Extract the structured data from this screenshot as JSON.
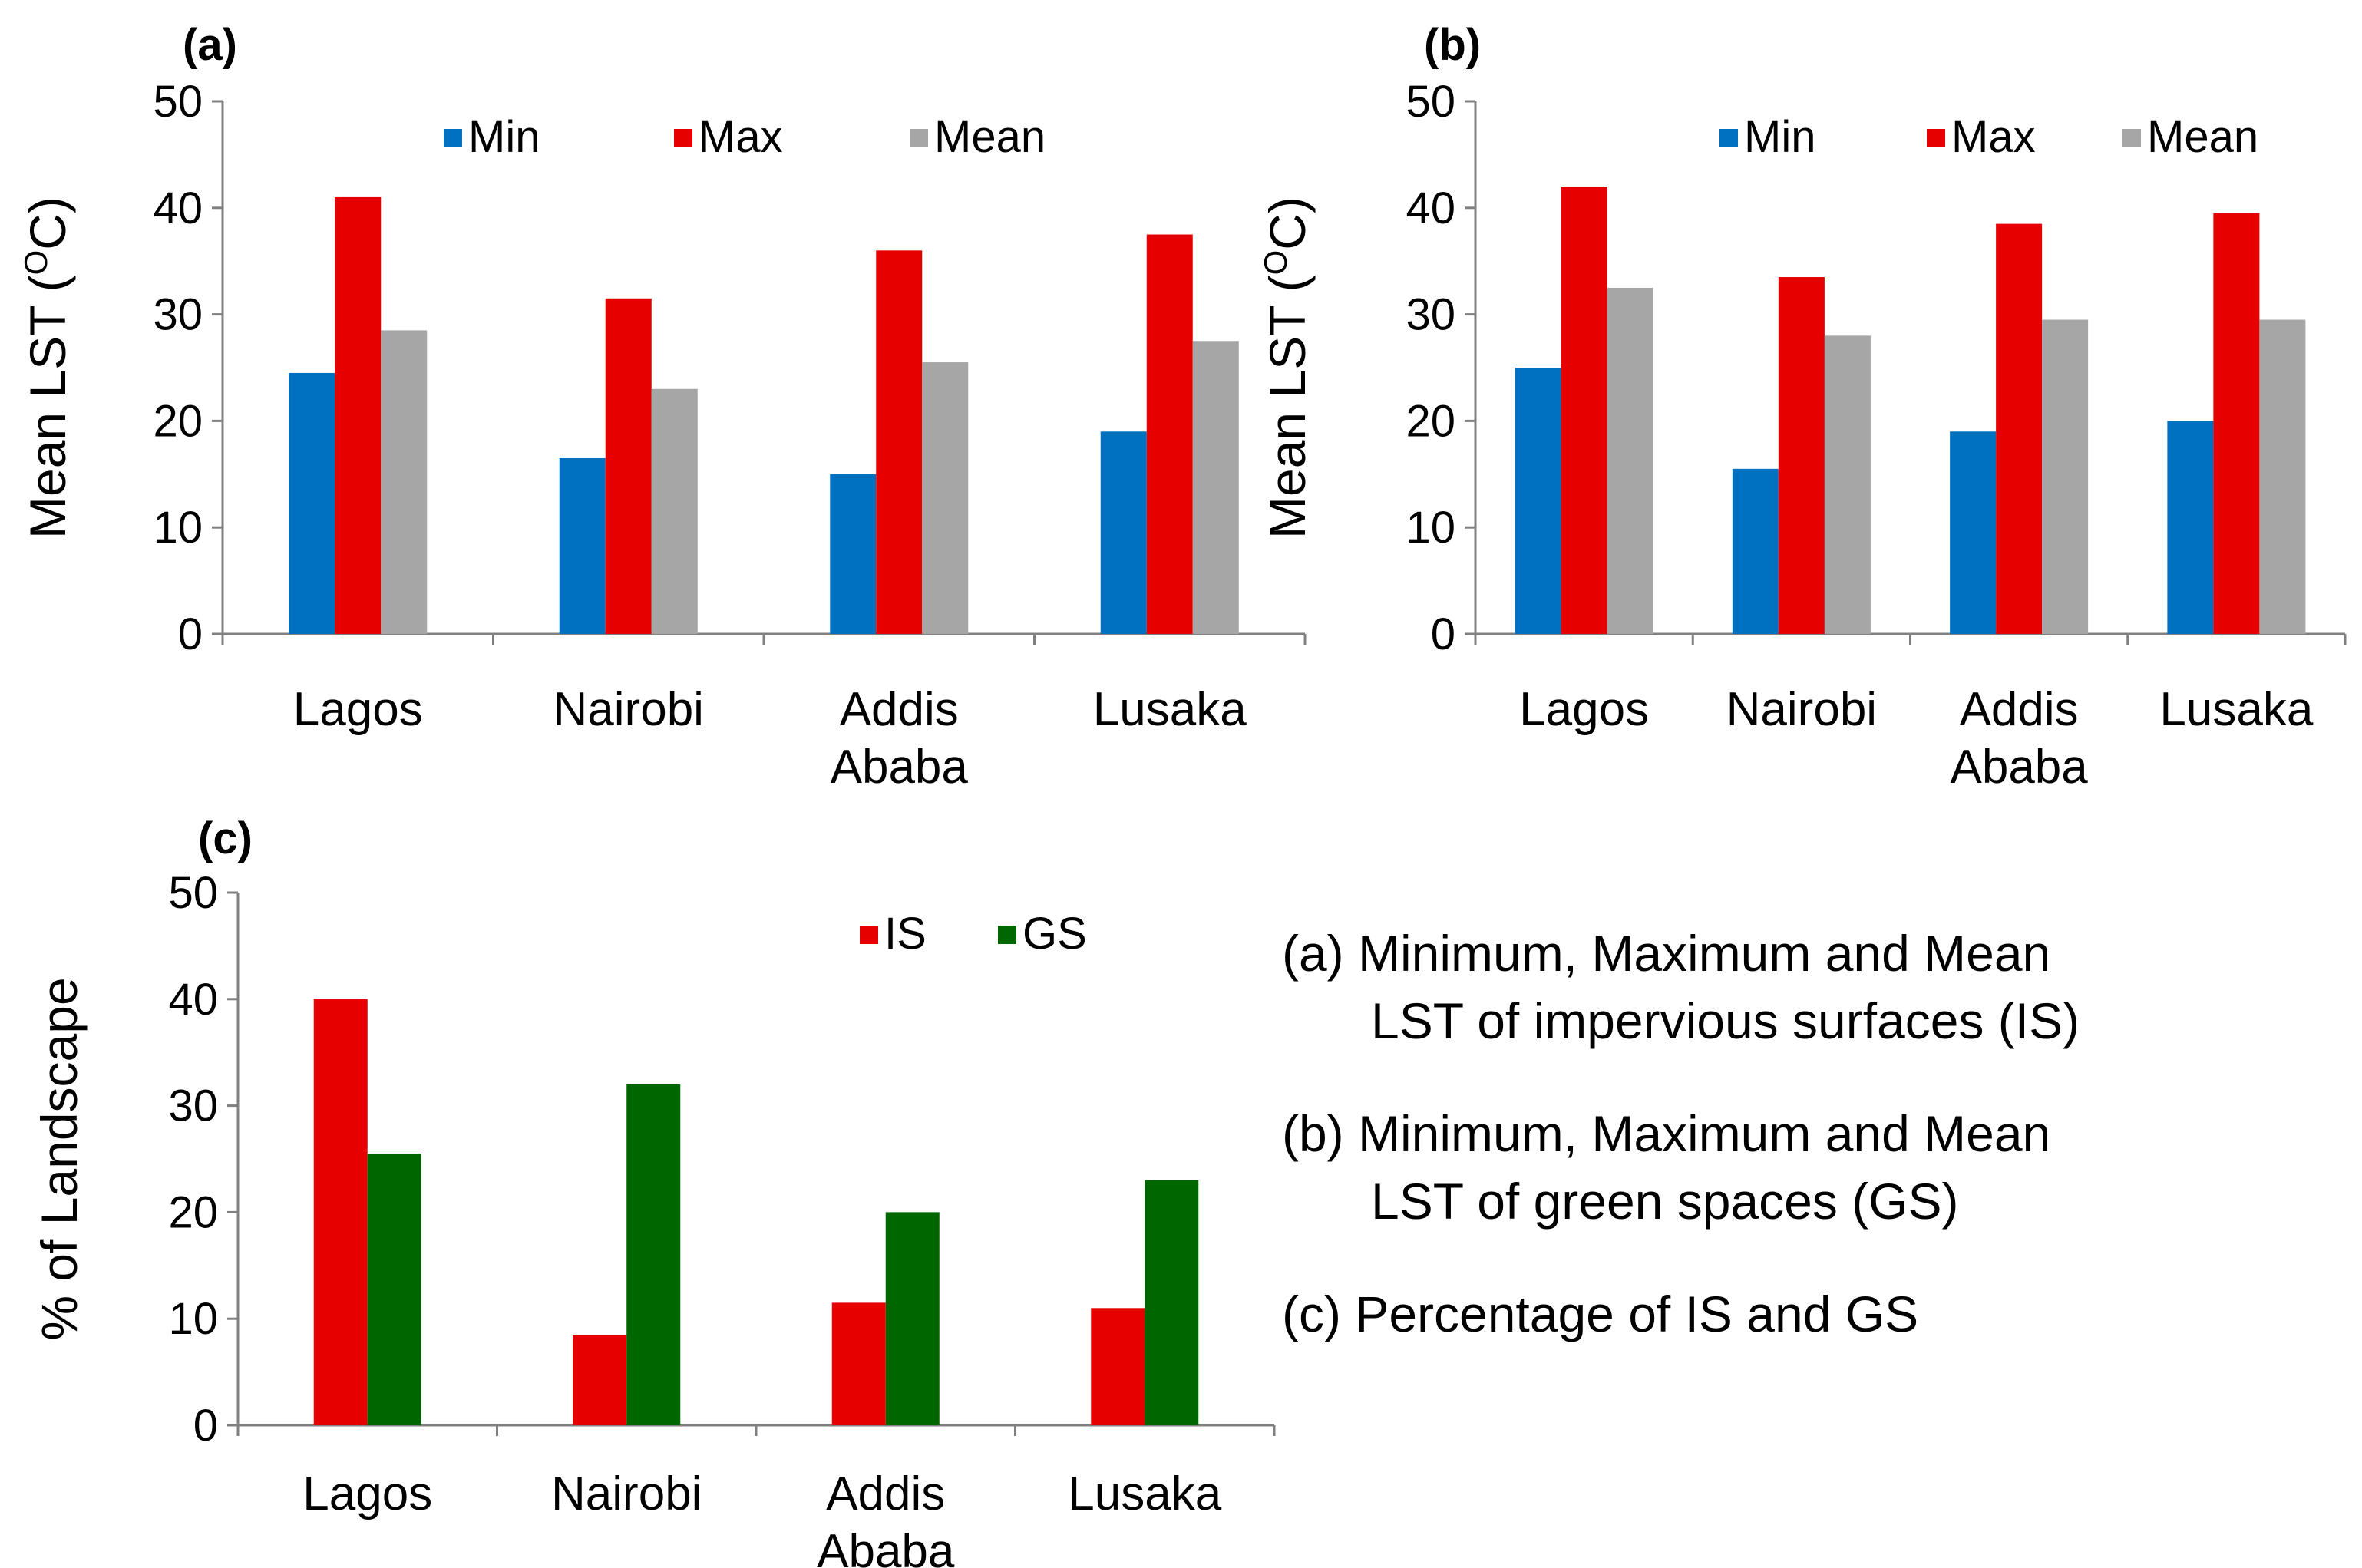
{
  "colors": {
    "min": "#0070C0",
    "max": "#E60000",
    "mean": "#A6A6A6",
    "is": "#E60000",
    "gs": "#006600",
    "axis": "#808080",
    "text": "#000000"
  },
  "chart_data": [
    {
      "panel_label": "(a)",
      "type": "bar",
      "title": "",
      "ylabel": "Mean LST (",
      "ylabel_sup": "O",
      "ylabel_end": "C)",
      "xlabel": "",
      "ylim": [
        0,
        50
      ],
      "yticks": [
        "0",
        "10",
        "20",
        "30",
        "40",
        "50"
      ],
      "categories": [
        [
          "Lagos"
        ],
        [
          "Nairobi"
        ],
        [
          "Addis",
          "Ababa"
        ],
        [
          "Lusaka"
        ]
      ],
      "legend_position": "top-right",
      "series": [
        {
          "name": "Min",
          "color_key": "min",
          "values": [
            24.5,
            16.5,
            15,
            19
          ]
        },
        {
          "name": "Max",
          "color_key": "max",
          "values": [
            41,
            31.5,
            36,
            37.5
          ]
        },
        {
          "name": "Mean",
          "color_key": "mean",
          "values": [
            28.5,
            23,
            25.5,
            27.5
          ]
        }
      ]
    },
    {
      "panel_label": "(b)",
      "type": "bar",
      "title": "",
      "ylabel": "Mean LST (",
      "ylabel_sup": "O",
      "ylabel_end": "C)",
      "xlabel": "",
      "ylim": [
        0,
        50
      ],
      "yticks": [
        "0",
        "10",
        "20",
        "30",
        "40",
        "50"
      ],
      "categories": [
        [
          "Lagos"
        ],
        [
          "Nairobi"
        ],
        [
          "Addis",
          "Ababa"
        ],
        [
          "Lusaka"
        ]
      ],
      "legend_position": "top-right",
      "series": [
        {
          "name": "Min",
          "color_key": "min",
          "values": [
            25,
            15.5,
            19,
            20
          ]
        },
        {
          "name": "Max",
          "color_key": "max",
          "values": [
            42,
            33.5,
            38.5,
            39.5
          ]
        },
        {
          "name": "Mean",
          "color_key": "mean",
          "values": [
            32.5,
            28,
            29.5,
            29.5
          ]
        }
      ]
    },
    {
      "panel_label": "(c)",
      "type": "bar",
      "title": "",
      "ylabel": "% of Landscape",
      "ylabel_sup": "",
      "ylabel_end": "",
      "xlabel": "",
      "ylim": [
        0,
        50
      ],
      "yticks": [
        "0",
        "10",
        "20",
        "30",
        "40",
        "50"
      ],
      "categories": [
        [
          "Lagos"
        ],
        [
          "Nairobi"
        ],
        [
          "Addis",
          "Ababa"
        ],
        [
          "Lusaka"
        ]
      ],
      "legend_position": "top-right",
      "series": [
        {
          "name": "IS",
          "color_key": "is",
          "values": [
            40,
            8.5,
            11.5,
            11
          ]
        },
        {
          "name": "GS",
          "color_key": "gs",
          "values": [
            25.5,
            32,
            20,
            23
          ]
        }
      ]
    }
  ],
  "caption": {
    "a_line1": "(a) Minimum, Maximum and Mean",
    "a_line2": "LST of impervious surfaces (IS)",
    "b_line1": "(b) Minimum, Maximum and Mean",
    "b_line2": "LST of  green spaces (GS)",
    "c_line1": "(c)  Percentage of IS and GS"
  }
}
